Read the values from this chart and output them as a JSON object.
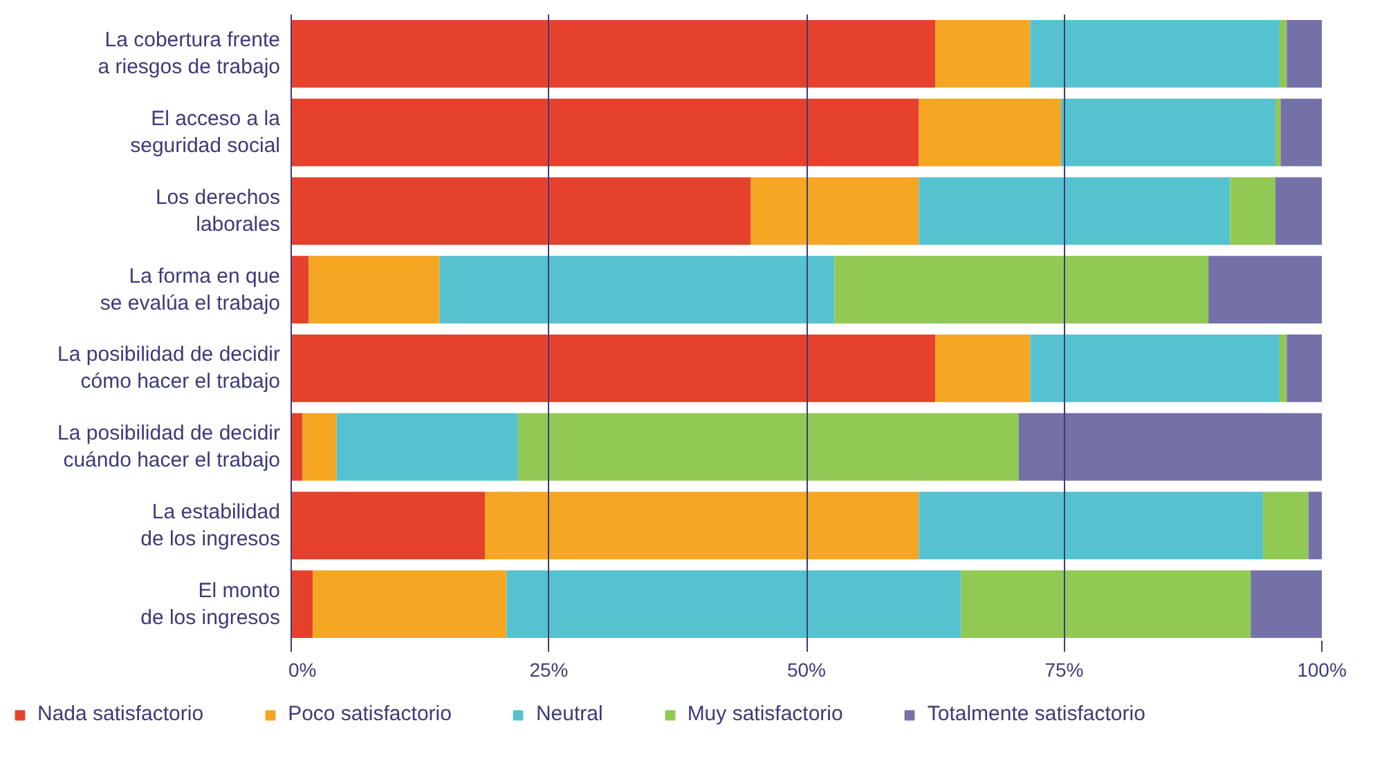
{
  "chart_data": {
    "type": "bar",
    "orientation": "horizontal",
    "stacked": true,
    "categories": [
      "La cobertura frente\na riesgos de trabajo",
      "El acceso a la\nseguridad social",
      "Los derechos\nlaborales",
      "La forma en que\nse evalúa el trabajo",
      "La posibilidad de decidir\ncómo hacer el trabajo",
      "La posibilidad de decidir\ncuándo hacer el trabajo",
      "La estabilidad\nde los ingresos",
      "El monto\nde los ingresos"
    ],
    "series": [
      {
        "name": "Nada satisfactorio",
        "color": "#e5412d",
        "values": [
          62.5,
          60.9,
          44.6,
          1.7,
          62.5,
          1.1,
          18.8,
          2.1
        ]
      },
      {
        "name": "Poco satisfactorio",
        "color": "#f5a623",
        "values": [
          9.2,
          13.8,
          16.3,
          12.7,
          9.2,
          3.3,
          42.1,
          18.8
        ]
      },
      {
        "name": "Neutral",
        "color": "#56c1cf",
        "values": [
          24.2,
          20.8,
          30.2,
          38.3,
          24.2,
          17.6,
          33.4,
          44.1
        ]
      },
      {
        "name": "Muy satisfactorio",
        "color": "#92c955",
        "values": [
          0.7,
          0.5,
          4.4,
          36.3,
          0.7,
          48.6,
          4.4,
          28.1
        ]
      },
      {
        "name": "Totalmente satisfactorio",
        "color": "#7470a8",
        "values": [
          3.4,
          4.0,
          4.5,
          11.0,
          3.4,
          29.4,
          1.3,
          6.9
        ]
      }
    ],
    "xlim": [
      0,
      100
    ],
    "xticks": [
      {
        "value": 0,
        "label": "0%"
      },
      {
        "value": 25,
        "label": "25%"
      },
      {
        "value": 50,
        "label": "50%"
      },
      {
        "value": 75,
        "label": "75%"
      },
      {
        "value": 100,
        "label": "100%"
      }
    ],
    "grid": "x",
    "legend": "bottom"
  }
}
